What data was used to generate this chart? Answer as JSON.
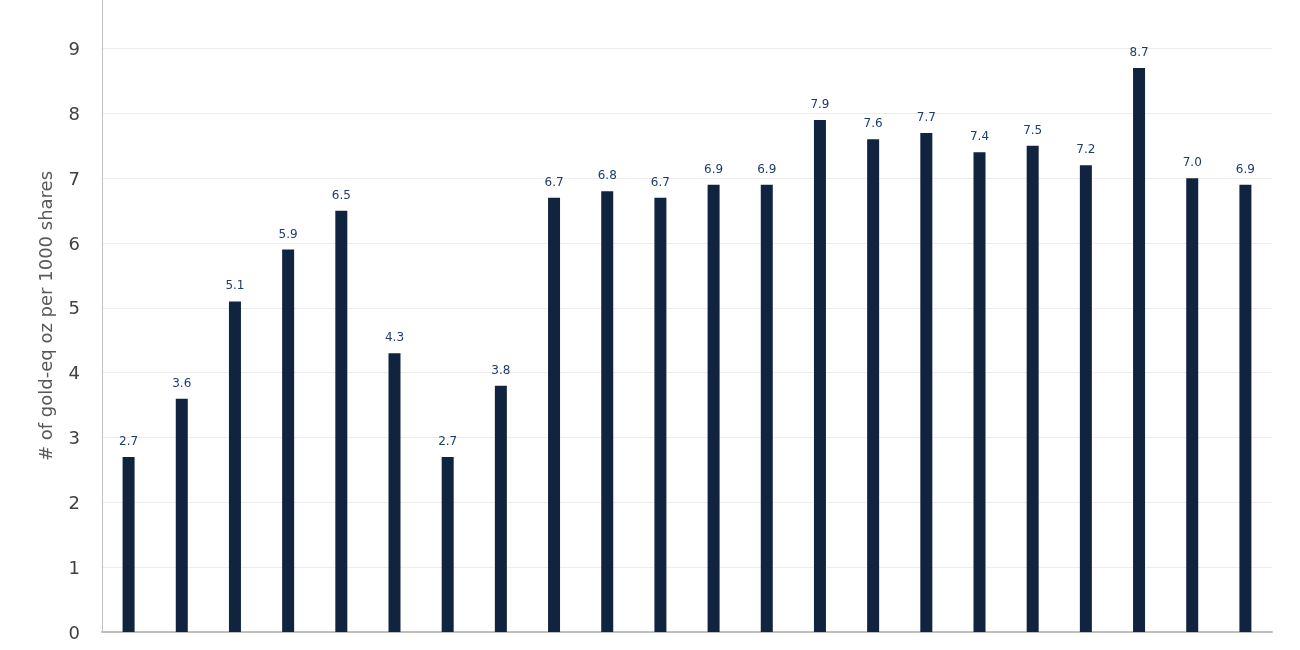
{
  "chart_data": {
    "type": "bar",
    "ylabel": "# of gold-eq oz per 1000 shares",
    "categories": [
      null,
      null,
      null,
      null,
      null,
      null,
      null,
      null,
      null,
      null,
      null,
      null,
      null,
      null,
      null,
      null,
      null,
      null,
      null,
      null,
      null,
      null
    ],
    "values": [
      2.7,
      3.6,
      5.1,
      5.9,
      6.5,
      4.3,
      2.7,
      3.8,
      6.7,
      6.8,
      6.7,
      6.9,
      6.9,
      7.9,
      7.6,
      7.7,
      7.4,
      7.5,
      7.2,
      8.7,
      7.0,
      6.9
    ],
    "value_labels": [
      "2.7",
      "3.6",
      "5.1",
      "5.9",
      "6.5",
      "4.3",
      "2.7",
      "3.8",
      "6.7",
      "6.8",
      "6.7",
      "6.9",
      "6.9",
      "7.9",
      "7.6",
      "7.7",
      "7.4",
      "7.5",
      "7.2",
      "8.7",
      "7.0",
      "6.9"
    ],
    "color": "#10233f",
    "ylim": [
      0,
      9.75
    ],
    "yticks": [
      0,
      1,
      2,
      3,
      4,
      5,
      6,
      7,
      8,
      9
    ],
    "grid": "y"
  }
}
